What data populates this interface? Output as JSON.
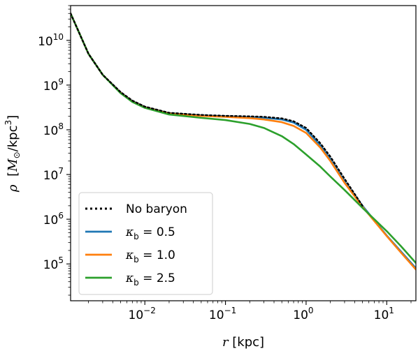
{
  "chart_data": {
    "type": "line",
    "title": "",
    "x_scale": "log",
    "y_scale": "log",
    "xlim": [
      0.0012,
      23
    ],
    "ylim": [
      15000,
      60000000000
    ],
    "xlabel": {
      "sym": "r",
      "unit": " [kpc]"
    },
    "ylabel": {
      "sym": "ρ",
      "unit_pre": "[",
      "msun": "M",
      "sun": "⊙",
      "unit_mid": "/kpc",
      "sup": "3",
      "unit_post": "]"
    },
    "x_ticks": [
      {
        "value": 0.01,
        "base": "10",
        "exp": "−2"
      },
      {
        "value": 0.1,
        "base": "10",
        "exp": "−1"
      },
      {
        "value": 1,
        "base": "10",
        "exp": "0"
      },
      {
        "value": 10,
        "base": "10",
        "exp": "1"
      }
    ],
    "y_ticks": [
      {
        "value": 100000,
        "base": "10",
        "exp": "5"
      },
      {
        "value": 1000000,
        "base": "10",
        "exp": "6"
      },
      {
        "value": 10000000,
        "base": "10",
        "exp": "7"
      },
      {
        "value": 100000000,
        "base": "10",
        "exp": "8"
      },
      {
        "value": 1000000000,
        "base": "10",
        "exp": "9"
      },
      {
        "value": 10000000000,
        "base": "10",
        "exp": "10"
      }
    ],
    "legend_position": "lower-left",
    "series": [
      {
        "name": "No baryon",
        "label": {
          "text": "No baryon"
        },
        "color": "#000000",
        "style": "dotted",
        "x": [
          0.0012,
          0.002,
          0.003,
          0.005,
          0.007,
          0.01,
          0.02,
          0.05,
          0.1,
          0.2,
          0.3,
          0.5,
          0.7,
          1.0,
          1.5,
          2.0,
          3.0,
          5.0
        ],
        "y": [
          40000000000,
          5000000000,
          1700000000,
          700000000,
          450000000,
          330000000,
          240000000,
          215000000,
          205000000,
          200000000,
          195000000,
          180000000,
          155000000,
          110000000,
          50000000,
          25000000,
          8000000,
          2000000
        ]
      },
      {
        "name": "κb = 0.5",
        "label": {
          "sym": "κ",
          "sub": "b",
          "rest": " = 0.5"
        },
        "color": "#1f77b4",
        "style": "solid",
        "x": [
          0.0012,
          0.002,
          0.003,
          0.005,
          0.007,
          0.01,
          0.02,
          0.05,
          0.1,
          0.2,
          0.3,
          0.5,
          0.7,
          1.0,
          1.5,
          2.0,
          3.0,
          5.0,
          10,
          15,
          23
        ],
        "y": [
          40000000000,
          5000000000,
          1700000000,
          690000000,
          440000000,
          325000000,
          235000000,
          210000000,
          200000000,
          192000000,
          186000000,
          170000000,
          145000000,
          100000000,
          45000000,
          22000000,
          7000000,
          2000000,
          430000,
          190000,
          80000
        ]
      },
      {
        "name": "κb = 1.0",
        "label": {
          "sym": "κ",
          "sub": "b",
          "rest": " = 1.0"
        },
        "color": "#ff7f0e",
        "style": "solid",
        "x": [
          0.0012,
          0.002,
          0.003,
          0.005,
          0.007,
          0.01,
          0.02,
          0.05,
          0.1,
          0.2,
          0.3,
          0.5,
          0.7,
          1.0,
          1.5,
          2.0,
          3.0,
          5.0,
          10,
          15,
          23
        ],
        "y": [
          40000000000,
          5000000000,
          1700000000,
          680000000,
          430000000,
          320000000,
          232000000,
          205000000,
          195000000,
          182000000,
          170000000,
          148000000,
          122000000,
          85000000,
          40000000,
          20000000,
          6500000,
          1900000,
          420000,
          180000,
          75000
        ]
      },
      {
        "name": "κb = 2.5",
        "label": {
          "sym": "κ",
          "sub": "b",
          "rest": " = 2.5"
        },
        "color": "#2ca02c",
        "style": "solid",
        "x": [
          0.0012,
          0.002,
          0.003,
          0.005,
          0.007,
          0.01,
          0.02,
          0.05,
          0.1,
          0.2,
          0.3,
          0.5,
          0.7,
          1.0,
          1.5,
          2.0,
          3.0,
          5.0,
          10,
          15,
          23
        ],
        "y": [
          40000000000,
          5000000000,
          1700000000,
          660000000,
          420000000,
          310000000,
          220000000,
          185000000,
          165000000,
          135000000,
          110000000,
          72000000,
          48000000,
          28000000,
          15000000,
          9000000,
          4500000,
          1800000,
          540000,
          250000,
          105000
        ]
      }
    ]
  }
}
